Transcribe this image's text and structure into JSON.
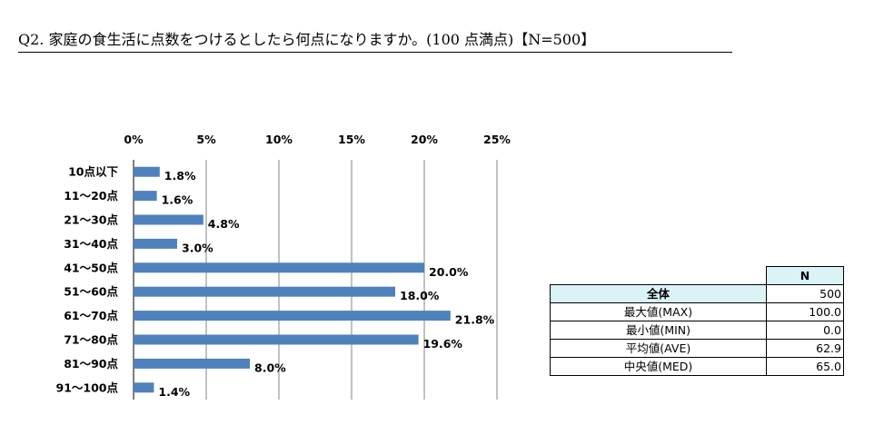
{
  "title": "Q2. 家庭の食生活に点数をつけるとしたら何点になりますか。(100 点満点)【N=500】",
  "chart_data": {
    "type": "bar",
    "orientation": "horizontal",
    "categories": [
      "10点以下",
      "11～20点",
      "21～30点",
      "31～40点",
      "41～50点",
      "51～60点",
      "61～70点",
      "71～80点",
      "81～90点",
      "91～100点"
    ],
    "values": [
      1.8,
      1.6,
      4.8,
      3.0,
      20.0,
      18.0,
      21.8,
      19.6,
      8.0,
      1.4
    ],
    "value_labels": [
      "1.8%",
      "1.6%",
      "4.8%",
      "3.0%",
      "20.0%",
      "18.0%",
      "21.8%",
      "19.6%",
      "8.0%",
      "1.4%"
    ],
    "xlim": [
      0,
      25
    ],
    "xticks": [
      "0%",
      "5%",
      "10%",
      "15%",
      "20%",
      "25%"
    ],
    "grid": true,
    "bar_color": "#4f81bd"
  },
  "stats_table": {
    "header": "N",
    "rows": [
      {
        "label": "全体",
        "value": "500"
      },
      {
        "label": "最大値(MAX)",
        "value": "100.0"
      },
      {
        "label": "最小値(MIN)",
        "value": "0.0"
      },
      {
        "label": "平均値(AVE)",
        "value": "62.9"
      },
      {
        "label": "中央値(MED)",
        "value": "65.0"
      }
    ]
  }
}
